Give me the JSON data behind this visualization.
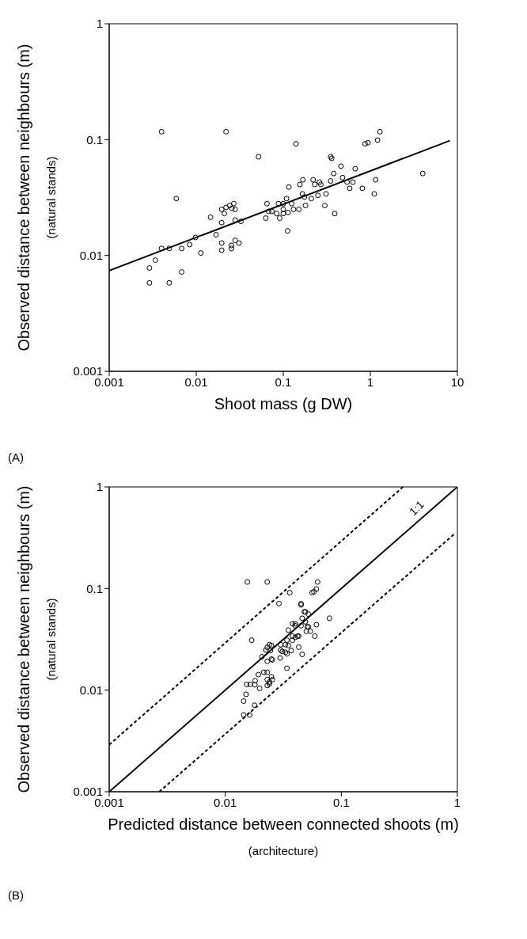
{
  "chart_data": [
    {
      "type": "scatter",
      "xlabel": "Shoot mass (g DW)",
      "ylabel": "Observed distance between neighbours (m)\n(natural stands)",
      "annotations": [
        "(A)"
      ],
      "log": "xy",
      "grid": false,
      "legend": false,
      "xlim": [
        0.001,
        10
      ],
      "xticks": [
        0.001,
        0.01,
        0.1,
        1,
        10
      ],
      "ylim": [
        0.001,
        1
      ],
      "yticks": [
        0.001,
        0.01,
        0.1,
        1
      ],
      "series": [
        {
          "marker": "circle",
          "color": "#000000",
          "x": [
            0.004,
            0.022,
            0.14,
            0.052,
            0.0059,
            1.29,
            1.21,
            0.87,
            0.94,
            4.0,
            0.35,
            0.36,
            0.38,
            0.46,
            0.67,
            0.48,
            0.35,
            0.54,
            0.63,
            0.58,
            0.81,
            1.15,
            1.11,
            0.31,
            0.3,
            0.39,
            0.22,
            0.23,
            0.26,
            0.27,
            0.168,
            0.155,
            0.116,
            0.166,
            0.175,
            0.25,
            0.21,
            0.18,
            0.109,
            0.125,
            0.151,
            0.131,
            0.113,
            0.1,
            0.1,
            0.091,
            0.084,
            0.088,
            0.1,
            0.065,
            0.063,
            0.068,
            0.074,
            0.112,
            0.0146,
            0.0196,
            0.021,
            0.022,
            0.0243,
            0.0257,
            0.027,
            0.028,
            0.0196,
            0.028,
            0.0326,
            0.0169,
            0.0196,
            0.0196,
            0.0254,
            0.0254,
            0.028,
            0.031,
            0.0098,
            0.0113,
            0.0084,
            0.0068,
            0.0049,
            0.004,
            0.0034,
            0.0029,
            0.0029,
            0.0049,
            0.0068
          ],
          "values": [
            0.117,
            0.117,
            0.092,
            0.071,
            0.031,
            0.117,
            0.099,
            0.092,
            0.094,
            0.051,
            0.071,
            0.069,
            0.051,
            0.059,
            0.056,
            0.047,
            0.044,
            0.043,
            0.043,
            0.038,
            0.038,
            0.045,
            0.034,
            0.034,
            0.027,
            0.023,
            0.045,
            0.041,
            0.043,
            0.041,
            0.045,
            0.041,
            0.039,
            0.034,
            0.032,
            0.033,
            0.031,
            0.027,
            0.031,
            0.028,
            0.025,
            0.025,
            0.0235,
            0.023,
            0.025,
            0.021,
            0.023,
            0.028,
            0.028,
            0.028,
            0.021,
            0.024,
            0.024,
            0.0163,
            0.0214,
            0.025,
            0.023,
            0.026,
            0.027,
            0.0255,
            0.028,
            0.025,
            0.0192,
            0.0202,
            0.0197,
            0.0151,
            0.0128,
            0.0111,
            0.0122,
            0.0115,
            0.0135,
            0.0128,
            0.0143,
            0.0105,
            0.0124,
            0.0115,
            0.0115,
            0.0115,
            0.0091,
            0.0078,
            0.0058,
            0.0058,
            0.0072
          ]
        },
        {
          "type": "line",
          "marker": "none",
          "color": "#000000",
          "line_style": "solid",
          "x": [
            0.001,
            8.2
          ],
          "values": [
            0.0074,
            0.098
          ]
        }
      ]
    },
    {
      "type": "scatter",
      "xlabel": "Predicted distance between connected shoots (m)\n(architecture)",
      "ylabel": "Observed distance between neighbours (m)\n(natural stands)",
      "annotations": [
        "(B)"
      ],
      "log": "xy",
      "grid": false,
      "legend": false,
      "xlim": [
        0.001,
        1
      ],
      "xticks": [
        0.001,
        0.01,
        0.1,
        1
      ],
      "ylim": [
        0.001,
        1
      ],
      "yticks": [
        0.001,
        0.01,
        0.1,
        1
      ],
      "series": [
        {
          "marker": "circle",
          "color": "#000000",
          "x": [
            0.0155,
            0.023,
            0.0625,
            0.036,
            0.056,
            0.058,
            0.061,
            0.029,
            0.045,
            0.045,
            0.048,
            0.049,
            0.079,
            0.052,
            0.046,
            0.049,
            0.061,
            0.051,
            0.052,
            0.038,
            0.04,
            0.04,
            0.045,
            0.035,
            0.05,
            0.054,
            0.059,
            0.038,
            0.04,
            0.042,
            0.043,
            0.034,
            0.038,
            0.0169,
            0.024,
            0.025,
            0.023,
            0.03,
            0.033,
            0.035,
            0.043,
            0.0224,
            0.0245,
            0.03,
            0.031,
            0.033,
            0.034,
            0.037,
            0.046,
            0.0207,
            0.0297,
            0.025,
            0.0255,
            0.023,
            0.034,
            0.0215,
            0.023,
            0.0193,
            0.025,
            0.0255,
            0.023,
            0.0181,
            0.024,
            0.0153,
            0.0164,
            0.018,
            0.023,
            0.024,
            0.0198,
            0.0151,
            0.0144,
            0.0179,
            0.0144,
            0.0162
          ],
          "values": [
            0.116,
            0.116,
            0.116,
            0.091,
            0.091,
            0.093,
            0.099,
            0.071,
            0.071,
            0.069,
            0.059,
            0.059,
            0.051,
            0.056,
            0.051,
            0.047,
            0.044,
            0.042,
            0.042,
            0.045,
            0.045,
            0.043,
            0.043,
            0.039,
            0.038,
            0.038,
            0.034,
            0.034,
            0.033,
            0.034,
            0.034,
            0.031,
            0.031,
            0.031,
            0.028,
            0.0275,
            0.0264,
            0.028,
            0.028,
            0.0275,
            0.0265,
            0.0248,
            0.0245,
            0.0248,
            0.024,
            0.0236,
            0.0228,
            0.0245,
            0.0225,
            0.0213,
            0.0207,
            0.0202,
            0.0198,
            0.0192,
            0.0164,
            0.015,
            0.015,
            0.0142,
            0.0135,
            0.0127,
            0.0127,
            0.0124,
            0.012,
            0.0114,
            0.0114,
            0.0113,
            0.0111,
            0.0115,
            0.0104,
            0.0091,
            0.0078,
            0.0071,
            0.0057,
            0.0057
          ]
        },
        {
          "type": "line",
          "name": "1:1",
          "marker": "none",
          "color": "#000000",
          "line_style": "solid",
          "x": [
            0.001,
            1
          ],
          "values": [
            0.001,
            1
          ]
        },
        {
          "type": "line",
          "marker": "none",
          "color": "#000000",
          "line_style": "dashed",
          "x": [
            0.001,
            0.34
          ],
          "values": [
            0.0029,
            1
          ]
        },
        {
          "type": "line",
          "marker": "none",
          "color": "#000000",
          "line_style": "dashed",
          "x": [
            0.0027,
            0.93
          ],
          "values": [
            0.001,
            0.34
          ]
        }
      ]
    }
  ]
}
